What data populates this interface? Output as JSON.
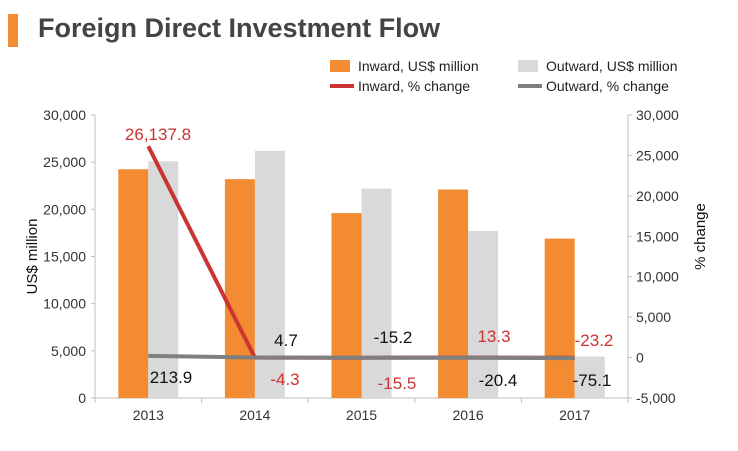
{
  "title": "Foreign Direct Investment Flow",
  "colors": {
    "inward_bar": "#f28b31",
    "outward_bar": "#d9d9d9",
    "inward_line": "#cc3333",
    "outward_line": "#7f7f7f",
    "accent": "#f28b31"
  },
  "chart_data": {
    "type": "bar",
    "categories": [
      "2013",
      "2014",
      "2015",
      "2016",
      "2017"
    ],
    "ylabel": "US$ million",
    "y2label": "% change",
    "ylim": [
      0,
      30000
    ],
    "y2lim": [
      -5000,
      30000
    ],
    "yticks": [
      "0",
      "5,000",
      "10,000",
      "15,000",
      "20,000",
      "25,000",
      "30,000"
    ],
    "y2ticks": [
      "-5,000",
      "0",
      "5,000",
      "10,000",
      "15,000",
      "20,000",
      "25,000",
      "30,000"
    ],
    "legend_position": "top-right",
    "series": [
      {
        "name": "Inward, US$ million",
        "kind": "bar",
        "axis": "left",
        "values": [
          24250,
          23200,
          19600,
          22100,
          16900
        ]
      },
      {
        "name": "Outward, US$ million",
        "kind": "bar",
        "axis": "left",
        "values": [
          25100,
          26200,
          22200,
          17700,
          4400
        ]
      },
      {
        "name": "Inward, % change",
        "kind": "line",
        "axis": "right",
        "values": [
          26137.8,
          -4.3,
          -15.5,
          13.3,
          -23.2
        ],
        "labels": [
          "26,137.8",
          "-4.3",
          "-15.5",
          "13.3",
          "-23.2"
        ]
      },
      {
        "name": "Outward, % change",
        "kind": "line",
        "axis": "right",
        "values": [
          213.9,
          4.7,
          -15.2,
          -20.4,
          -75.1
        ],
        "labels": [
          "213.9",
          "4.7",
          "-15.2",
          "-20.4",
          "-75.1"
        ]
      }
    ]
  }
}
